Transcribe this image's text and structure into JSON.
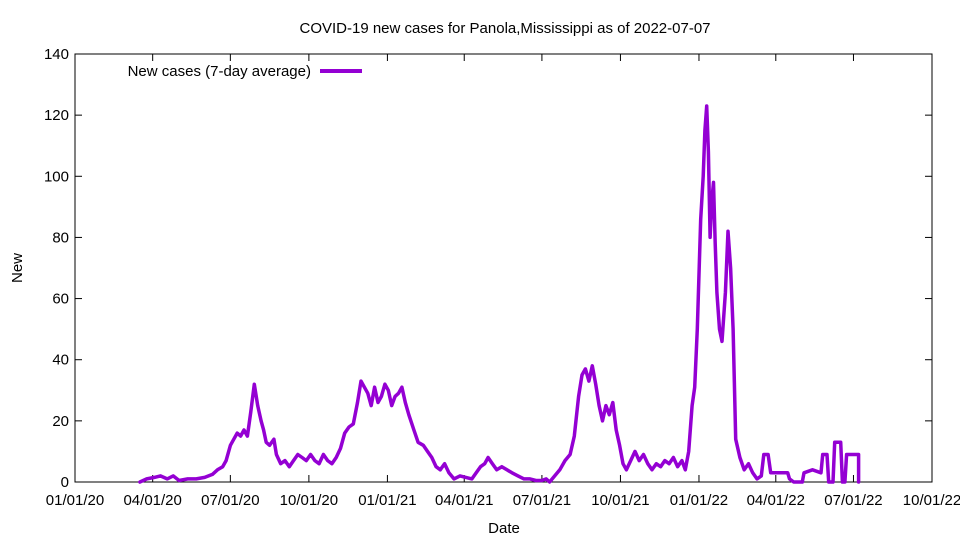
{
  "chart_data": {
    "type": "line",
    "title": "COVID-19 new cases for Panola,Mississippi as of 2022-07-07",
    "xlabel": "Date",
    "ylabel": "New",
    "ylim": [
      0,
      140
    ],
    "xlim": [
      "2020-01-01",
      "2022-10-01"
    ],
    "x_ticks": [
      "01/01/20",
      "04/01/20",
      "07/01/20",
      "10/01/20",
      "01/01/21",
      "04/01/21",
      "07/01/21",
      "10/01/21",
      "01/01/22",
      "04/01/22",
      "07/01/22",
      "10/01/22"
    ],
    "x_tick_dates": [
      "2020-01-01",
      "2020-04-01",
      "2020-07-01",
      "2020-10-01",
      "2021-01-01",
      "2021-04-01",
      "2021-07-01",
      "2021-10-01",
      "2022-01-01",
      "2022-04-01",
      "2022-07-01",
      "2022-10-01"
    ],
    "y_ticks": [
      0,
      20,
      40,
      60,
      80,
      100,
      120,
      140
    ],
    "grid": false,
    "legend": "top-left",
    "series": [
      {
        "name": "New cases (7-day average)",
        "color": "#9400d3",
        "points": [
          [
            "2020-03-17",
            0
          ],
          [
            "2020-03-25",
            1
          ],
          [
            "2020-04-03",
            1.5
          ],
          [
            "2020-04-10",
            2
          ],
          [
            "2020-04-18",
            1
          ],
          [
            "2020-04-25",
            2
          ],
          [
            "2020-05-02",
            0.5
          ],
          [
            "2020-05-12",
            1
          ],
          [
            "2020-05-22",
            1
          ],
          [
            "2020-06-01",
            1.5
          ],
          [
            "2020-06-10",
            2.5
          ],
          [
            "2020-06-16",
            4
          ],
          [
            "2020-06-22",
            5
          ],
          [
            "2020-06-26",
            7
          ],
          [
            "2020-07-01",
            12
          ],
          [
            "2020-07-05",
            14
          ],
          [
            "2020-07-09",
            16
          ],
          [
            "2020-07-13",
            15
          ],
          [
            "2020-07-17",
            17
          ],
          [
            "2020-07-21",
            15
          ],
          [
            "2020-07-25",
            23
          ],
          [
            "2020-07-29",
            32
          ],
          [
            "2020-08-02",
            25
          ],
          [
            "2020-08-06",
            20
          ],
          [
            "2020-08-09",
            17
          ],
          [
            "2020-08-12",
            13
          ],
          [
            "2020-08-16",
            12
          ],
          [
            "2020-08-21",
            14
          ],
          [
            "2020-08-24",
            9
          ],
          [
            "2020-08-29",
            6
          ],
          [
            "2020-09-03",
            7
          ],
          [
            "2020-09-08",
            5
          ],
          [
            "2020-09-13",
            7
          ],
          [
            "2020-09-18",
            9
          ],
          [
            "2020-09-23",
            8
          ],
          [
            "2020-09-28",
            7
          ],
          [
            "2020-10-03",
            9
          ],
          [
            "2020-10-08",
            7
          ],
          [
            "2020-10-13",
            6
          ],
          [
            "2020-10-18",
            9
          ],
          [
            "2020-10-23",
            7
          ],
          [
            "2020-10-28",
            6
          ],
          [
            "2020-11-02",
            8
          ],
          [
            "2020-11-07",
            11
          ],
          [
            "2020-11-12",
            16
          ],
          [
            "2020-11-17",
            18
          ],
          [
            "2020-11-22",
            19
          ],
          [
            "2020-11-27",
            26
          ],
          [
            "2020-12-01",
            33
          ],
          [
            "2020-12-05",
            31
          ],
          [
            "2020-12-09",
            29
          ],
          [
            "2020-12-13",
            25
          ],
          [
            "2020-12-17",
            31
          ],
          [
            "2020-12-21",
            26
          ],
          [
            "2020-12-25",
            28
          ],
          [
            "2020-12-29",
            32
          ],
          [
            "2021-01-02",
            30
          ],
          [
            "2021-01-06",
            25
          ],
          [
            "2021-01-10",
            28
          ],
          [
            "2021-01-14",
            29
          ],
          [
            "2021-01-18",
            31
          ],
          [
            "2021-01-22",
            26
          ],
          [
            "2021-01-26",
            22
          ],
          [
            "2021-02-01",
            17
          ],
          [
            "2021-02-06",
            13
          ],
          [
            "2021-02-12",
            12
          ],
          [
            "2021-02-17",
            10
          ],
          [
            "2021-02-22",
            8
          ],
          [
            "2021-02-27",
            5
          ],
          [
            "2021-03-04",
            4
          ],
          [
            "2021-03-09",
            6
          ],
          [
            "2021-03-14",
            3
          ],
          [
            "2021-03-20",
            1
          ],
          [
            "2021-03-27",
            2
          ],
          [
            "2021-04-03",
            1.5
          ],
          [
            "2021-04-10",
            1
          ],
          [
            "2021-04-15",
            3
          ],
          [
            "2021-04-20",
            5
          ],
          [
            "2021-04-25",
            6
          ],
          [
            "2021-04-29",
            8
          ],
          [
            "2021-05-04",
            6
          ],
          [
            "2021-05-09",
            4
          ],
          [
            "2021-05-15",
            5
          ],
          [
            "2021-05-21",
            4
          ],
          [
            "2021-05-27",
            3
          ],
          [
            "2021-06-03",
            2
          ],
          [
            "2021-06-10",
            1
          ],
          [
            "2021-06-17",
            1
          ],
          [
            "2021-06-24",
            0.5
          ],
          [
            "2021-07-01",
            0.5
          ],
          [
            "2021-07-06",
            1
          ],
          [
            "2021-07-10",
            0
          ],
          [
            "2021-07-16",
            2
          ],
          [
            "2021-07-22",
            4
          ],
          [
            "2021-07-28",
            7
          ],
          [
            "2021-08-03",
            9
          ],
          [
            "2021-08-08",
            15
          ],
          [
            "2021-08-13",
            28
          ],
          [
            "2021-08-17",
            35
          ],
          [
            "2021-08-21",
            37
          ],
          [
            "2021-08-25",
            33
          ],
          [
            "2021-08-29",
            38
          ],
          [
            "2021-09-02",
            32
          ],
          [
            "2021-09-06",
            25
          ],
          [
            "2021-09-10",
            20
          ],
          [
            "2021-09-14",
            25
          ],
          [
            "2021-09-18",
            22
          ],
          [
            "2021-09-22",
            26
          ],
          [
            "2021-09-26",
            17
          ],
          [
            "2021-09-30",
            12
          ],
          [
            "2021-10-04",
            6
          ],
          [
            "2021-10-08",
            4
          ],
          [
            "2021-10-13",
            7
          ],
          [
            "2021-10-18",
            10
          ],
          [
            "2021-10-23",
            7
          ],
          [
            "2021-10-28",
            9
          ],
          [
            "2021-11-02",
            6
          ],
          [
            "2021-11-07",
            4
          ],
          [
            "2021-11-12",
            6
          ],
          [
            "2021-11-17",
            5
          ],
          [
            "2021-11-22",
            7
          ],
          [
            "2021-11-27",
            6
          ],
          [
            "2021-12-02",
            8
          ],
          [
            "2021-12-07",
            5
          ],
          [
            "2021-12-12",
            7
          ],
          [
            "2021-12-16",
            4
          ],
          [
            "2021-12-20",
            10
          ],
          [
            "2021-12-24",
            25
          ],
          [
            "2021-12-27",
            31
          ],
          [
            "2021-12-30",
            50
          ],
          [
            "2022-01-03",
            86
          ],
          [
            "2022-01-06",
            100
          ],
          [
            "2022-01-08",
            115
          ],
          [
            "2022-01-10",
            123
          ],
          [
            "2022-01-12",
            108
          ],
          [
            "2022-01-14",
            80
          ],
          [
            "2022-01-16",
            92
          ],
          [
            "2022-01-18",
            98
          ],
          [
            "2022-01-20",
            78
          ],
          [
            "2022-01-22",
            62
          ],
          [
            "2022-01-25",
            50
          ],
          [
            "2022-01-28",
            46
          ],
          [
            "2022-02-01",
            62
          ],
          [
            "2022-02-04",
            82
          ],
          [
            "2022-02-07",
            70
          ],
          [
            "2022-02-10",
            50
          ],
          [
            "2022-02-13",
            14
          ],
          [
            "2022-02-18",
            8
          ],
          [
            "2022-02-23",
            4
          ],
          [
            "2022-02-28",
            6
          ],
          [
            "2022-03-05",
            3
          ],
          [
            "2022-03-10",
            1
          ],
          [
            "2022-03-15",
            2
          ],
          [
            "2022-03-18",
            9
          ],
          [
            "2022-03-23",
            9
          ],
          [
            "2022-03-26",
            3
          ],
          [
            "2022-04-05",
            3
          ],
          [
            "2022-04-15",
            3
          ],
          [
            "2022-04-17",
            1
          ],
          [
            "2022-04-22",
            0
          ],
          [
            "2022-05-02",
            0
          ],
          [
            "2022-05-04",
            3
          ],
          [
            "2022-05-14",
            4
          ],
          [
            "2022-05-24",
            3
          ],
          [
            "2022-05-26",
            9
          ],
          [
            "2022-05-31",
            9
          ],
          [
            "2022-06-02",
            0
          ],
          [
            "2022-06-07",
            0
          ],
          [
            "2022-06-09",
            13
          ],
          [
            "2022-06-16",
            13
          ],
          [
            "2022-06-18",
            0
          ],
          [
            "2022-06-21",
            0
          ],
          [
            "2022-06-23",
            9
          ],
          [
            "2022-07-07",
            9
          ],
          [
            "2022-07-07",
            0
          ]
        ]
      }
    ]
  }
}
